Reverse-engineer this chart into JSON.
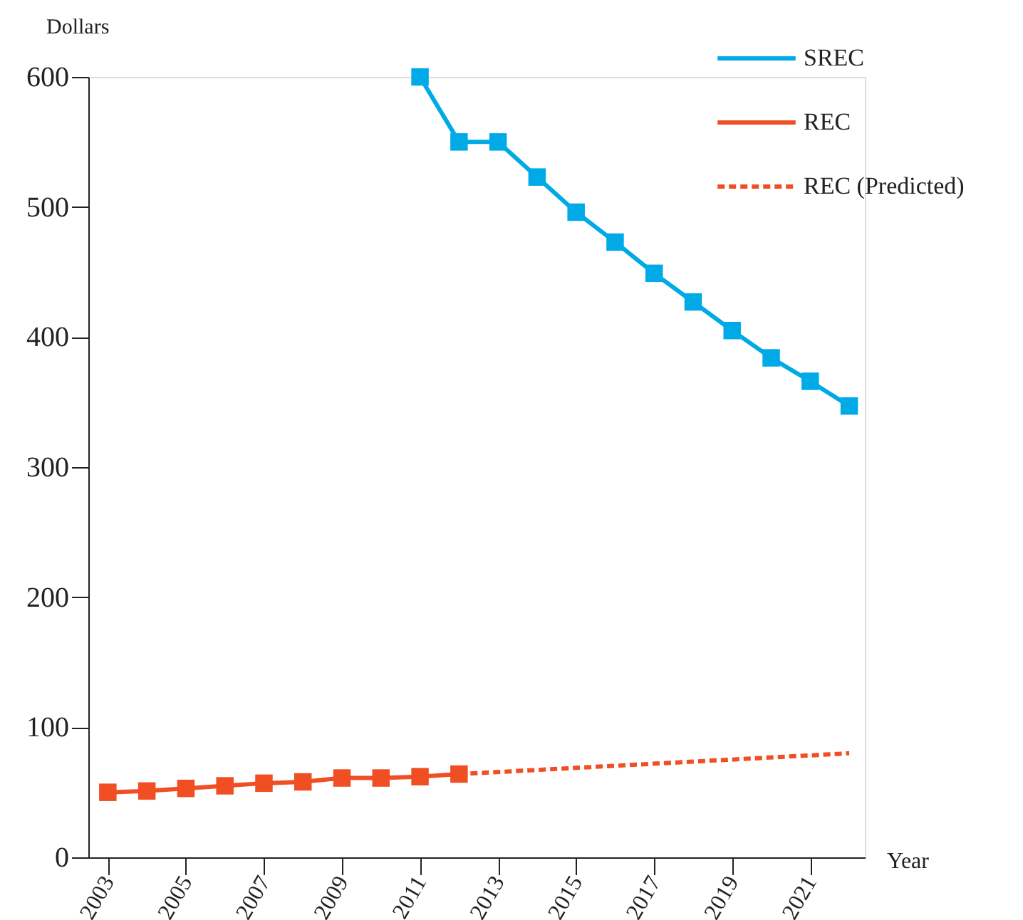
{
  "chart_data": {
    "type": "line",
    "xlabel": "Year",
    "ylabel": "Dollars",
    "xlim": [
      2002.5,
      2022.4
    ],
    "xticks": [
      2003,
      2005,
      2007,
      2009,
      2011,
      2013,
      2015,
      2017,
      2019,
      2021
    ],
    "ylim": [
      0,
      600
    ],
    "yticks": [
      0,
      100,
      200,
      300,
      400,
      500,
      600
    ],
    "grid": false,
    "legend": "top right",
    "series": [
      {
        "name": "SREC",
        "color": "#00aae7",
        "marker": "square",
        "line_style": "solid",
        "x": [
          2011,
          2012,
          2013,
          2014,
          2015,
          2016,
          2017,
          2018,
          2019,
          2020,
          2021,
          2022
        ],
        "values": [
          600,
          550,
          550,
          523,
          496,
          473,
          449,
          427,
          405,
          384,
          366,
          347
        ]
      },
      {
        "name": "REC",
        "color": "#f04e23",
        "marker": "square",
        "line_style": "solid",
        "x": [
          2003,
          2004,
          2005,
          2006,
          2007,
          2008,
          2009,
          2010,
          2011,
          2012
        ],
        "values": [
          50,
          51,
          53,
          55,
          57,
          58,
          61,
          61,
          62,
          64
        ]
      },
      {
        "name": "REC (Predicted)",
        "color": "#f04e23",
        "marker": "none",
        "line_style": "dashed",
        "x": [
          2012,
          2022
        ],
        "values": [
          64,
          80
        ]
      }
    ]
  }
}
